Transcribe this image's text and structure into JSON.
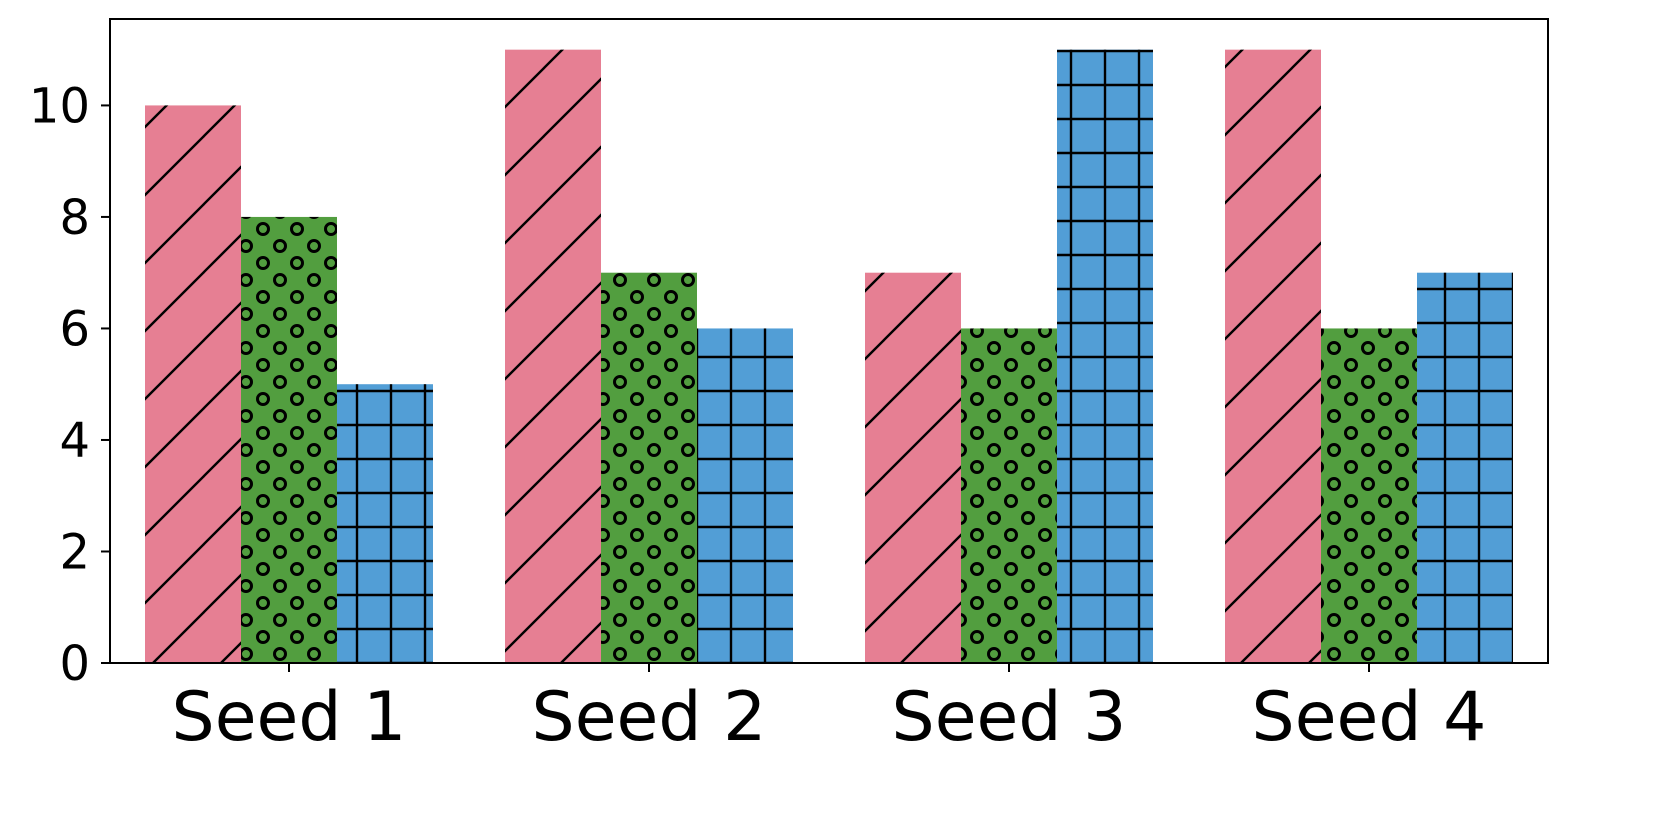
{
  "chart_data": {
    "type": "bar",
    "title": "",
    "xlabel": "",
    "ylabel": "",
    "categories": [
      "Seed 1",
      "Seed 2",
      "Seed 3",
      "Seed 4"
    ],
    "series": [
      {
        "values": [
          10,
          11,
          7,
          11
        ],
        "color": "#e67f93",
        "hatch": "diagonal"
      },
      {
        "values": [
          8,
          7,
          6,
          6
        ],
        "color": "#529e3f",
        "hatch": "circles"
      },
      {
        "values": [
          5,
          6,
          11,
          7
        ],
        "color": "#529ed6",
        "hatch": "grid"
      }
    ],
    "ylim": [
      0,
      11.55
    ],
    "yticks": [
      0,
      2,
      4,
      6,
      8,
      10
    ],
    "grid": false,
    "legend": "none"
  }
}
